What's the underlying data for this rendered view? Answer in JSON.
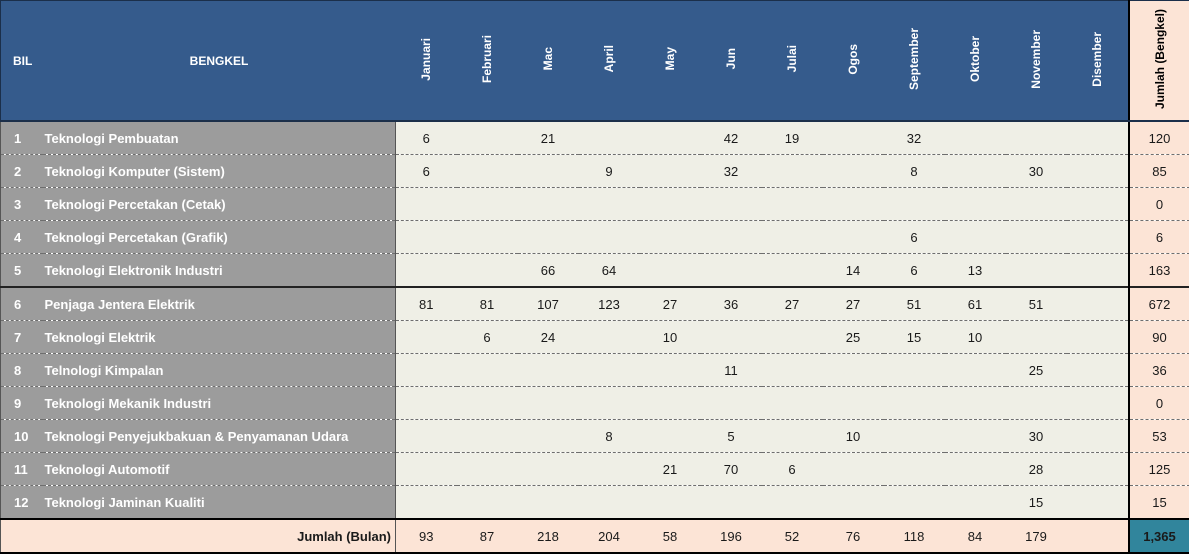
{
  "header": {
    "bil": "BIL",
    "bengkel": "BENGKEL",
    "months": [
      "Januari",
      "Februari",
      "Mac",
      "April",
      "May",
      "Jun",
      "Julai",
      "Ogos",
      "September",
      "Oktober",
      "November",
      "Disember"
    ],
    "total": "Jumlah (Bengkel)"
  },
  "rows": [
    {
      "bil": "1",
      "name": "Teknologi Pembuatan",
      "values": [
        "6",
        "",
        "21",
        "",
        "",
        "42",
        "19",
        "",
        "32",
        "",
        "",
        ""
      ],
      "total": "120"
    },
    {
      "bil": "2",
      "name": "Teknologi Komputer (Sistem)",
      "values": [
        "6",
        "",
        "",
        "9",
        "",
        "32",
        "",
        "",
        "8",
        "",
        "30",
        ""
      ],
      "total": "85"
    },
    {
      "bil": "3",
      "name": "Teknologi Percetakan (Cetak)",
      "values": [
        "",
        "",
        "",
        "",
        "",
        "",
        "",
        "",
        "",
        "",
        "",
        ""
      ],
      "total": "0"
    },
    {
      "bil": "4",
      "name": "Teknologi Percetakan (Grafik)",
      "values": [
        "",
        "",
        "",
        "",
        "",
        "",
        "",
        "",
        "6",
        "",
        "",
        ""
      ],
      "total": "6"
    },
    {
      "bil": "5",
      "name": "Teknologi Elektronik Industri",
      "values": [
        "",
        "",
        "66",
        "64",
        "",
        "",
        "",
        "14",
        "6",
        "13",
        "",
        ""
      ],
      "total": "163"
    },
    {
      "bil": "6",
      "name": "Penjaga Jentera Elektrik",
      "values": [
        "81",
        "81",
        "107",
        "123",
        "27",
        "36",
        "27",
        "27",
        "51",
        "61",
        "51",
        ""
      ],
      "total": "672"
    },
    {
      "bil": "7",
      "name": "Teknologi Elektrik",
      "values": [
        "",
        "6",
        "24",
        "",
        "10",
        "",
        "",
        "25",
        "15",
        "10",
        "",
        ""
      ],
      "total": "90"
    },
    {
      "bil": "8",
      "name": "Telnologi Kimpalan",
      "values": [
        "",
        "",
        "",
        "",
        "",
        "11",
        "",
        "",
        "",
        "",
        "25",
        ""
      ],
      "total": "36"
    },
    {
      "bil": "9",
      "name": "Teknologi Mekanik Industri",
      "values": [
        "",
        "",
        "",
        "",
        "",
        "",
        "",
        "",
        "",
        "",
        "",
        ""
      ],
      "total": "0"
    },
    {
      "bil": "10",
      "name": "Teknologi Penyejukbakuan & Penyamanan Udara",
      "values": [
        "",
        "",
        "",
        "8",
        "",
        "5",
        "",
        "10",
        "",
        "",
        "30",
        ""
      ],
      "total": "53"
    },
    {
      "bil": "11",
      "name": "Teknologi Automotif",
      "values": [
        "",
        "",
        "",
        "",
        "21",
        "70",
        "6",
        "",
        "",
        "",
        "28",
        ""
      ],
      "total": "125"
    },
    {
      "bil": "12",
      "name": "Teknologi Jaminan Kualiti",
      "values": [
        "",
        "",
        "",
        "",
        "",
        "",
        "",
        "",
        "",
        "",
        "15",
        ""
      ],
      "total": "15"
    }
  ],
  "footer": {
    "label": "Jumlah (Bulan)",
    "values": [
      "93",
      "87",
      "218",
      "204",
      "58",
      "196",
      "52",
      "76",
      "118",
      "84",
      "179",
      ""
    ],
    "grand_total": "1,365"
  }
}
